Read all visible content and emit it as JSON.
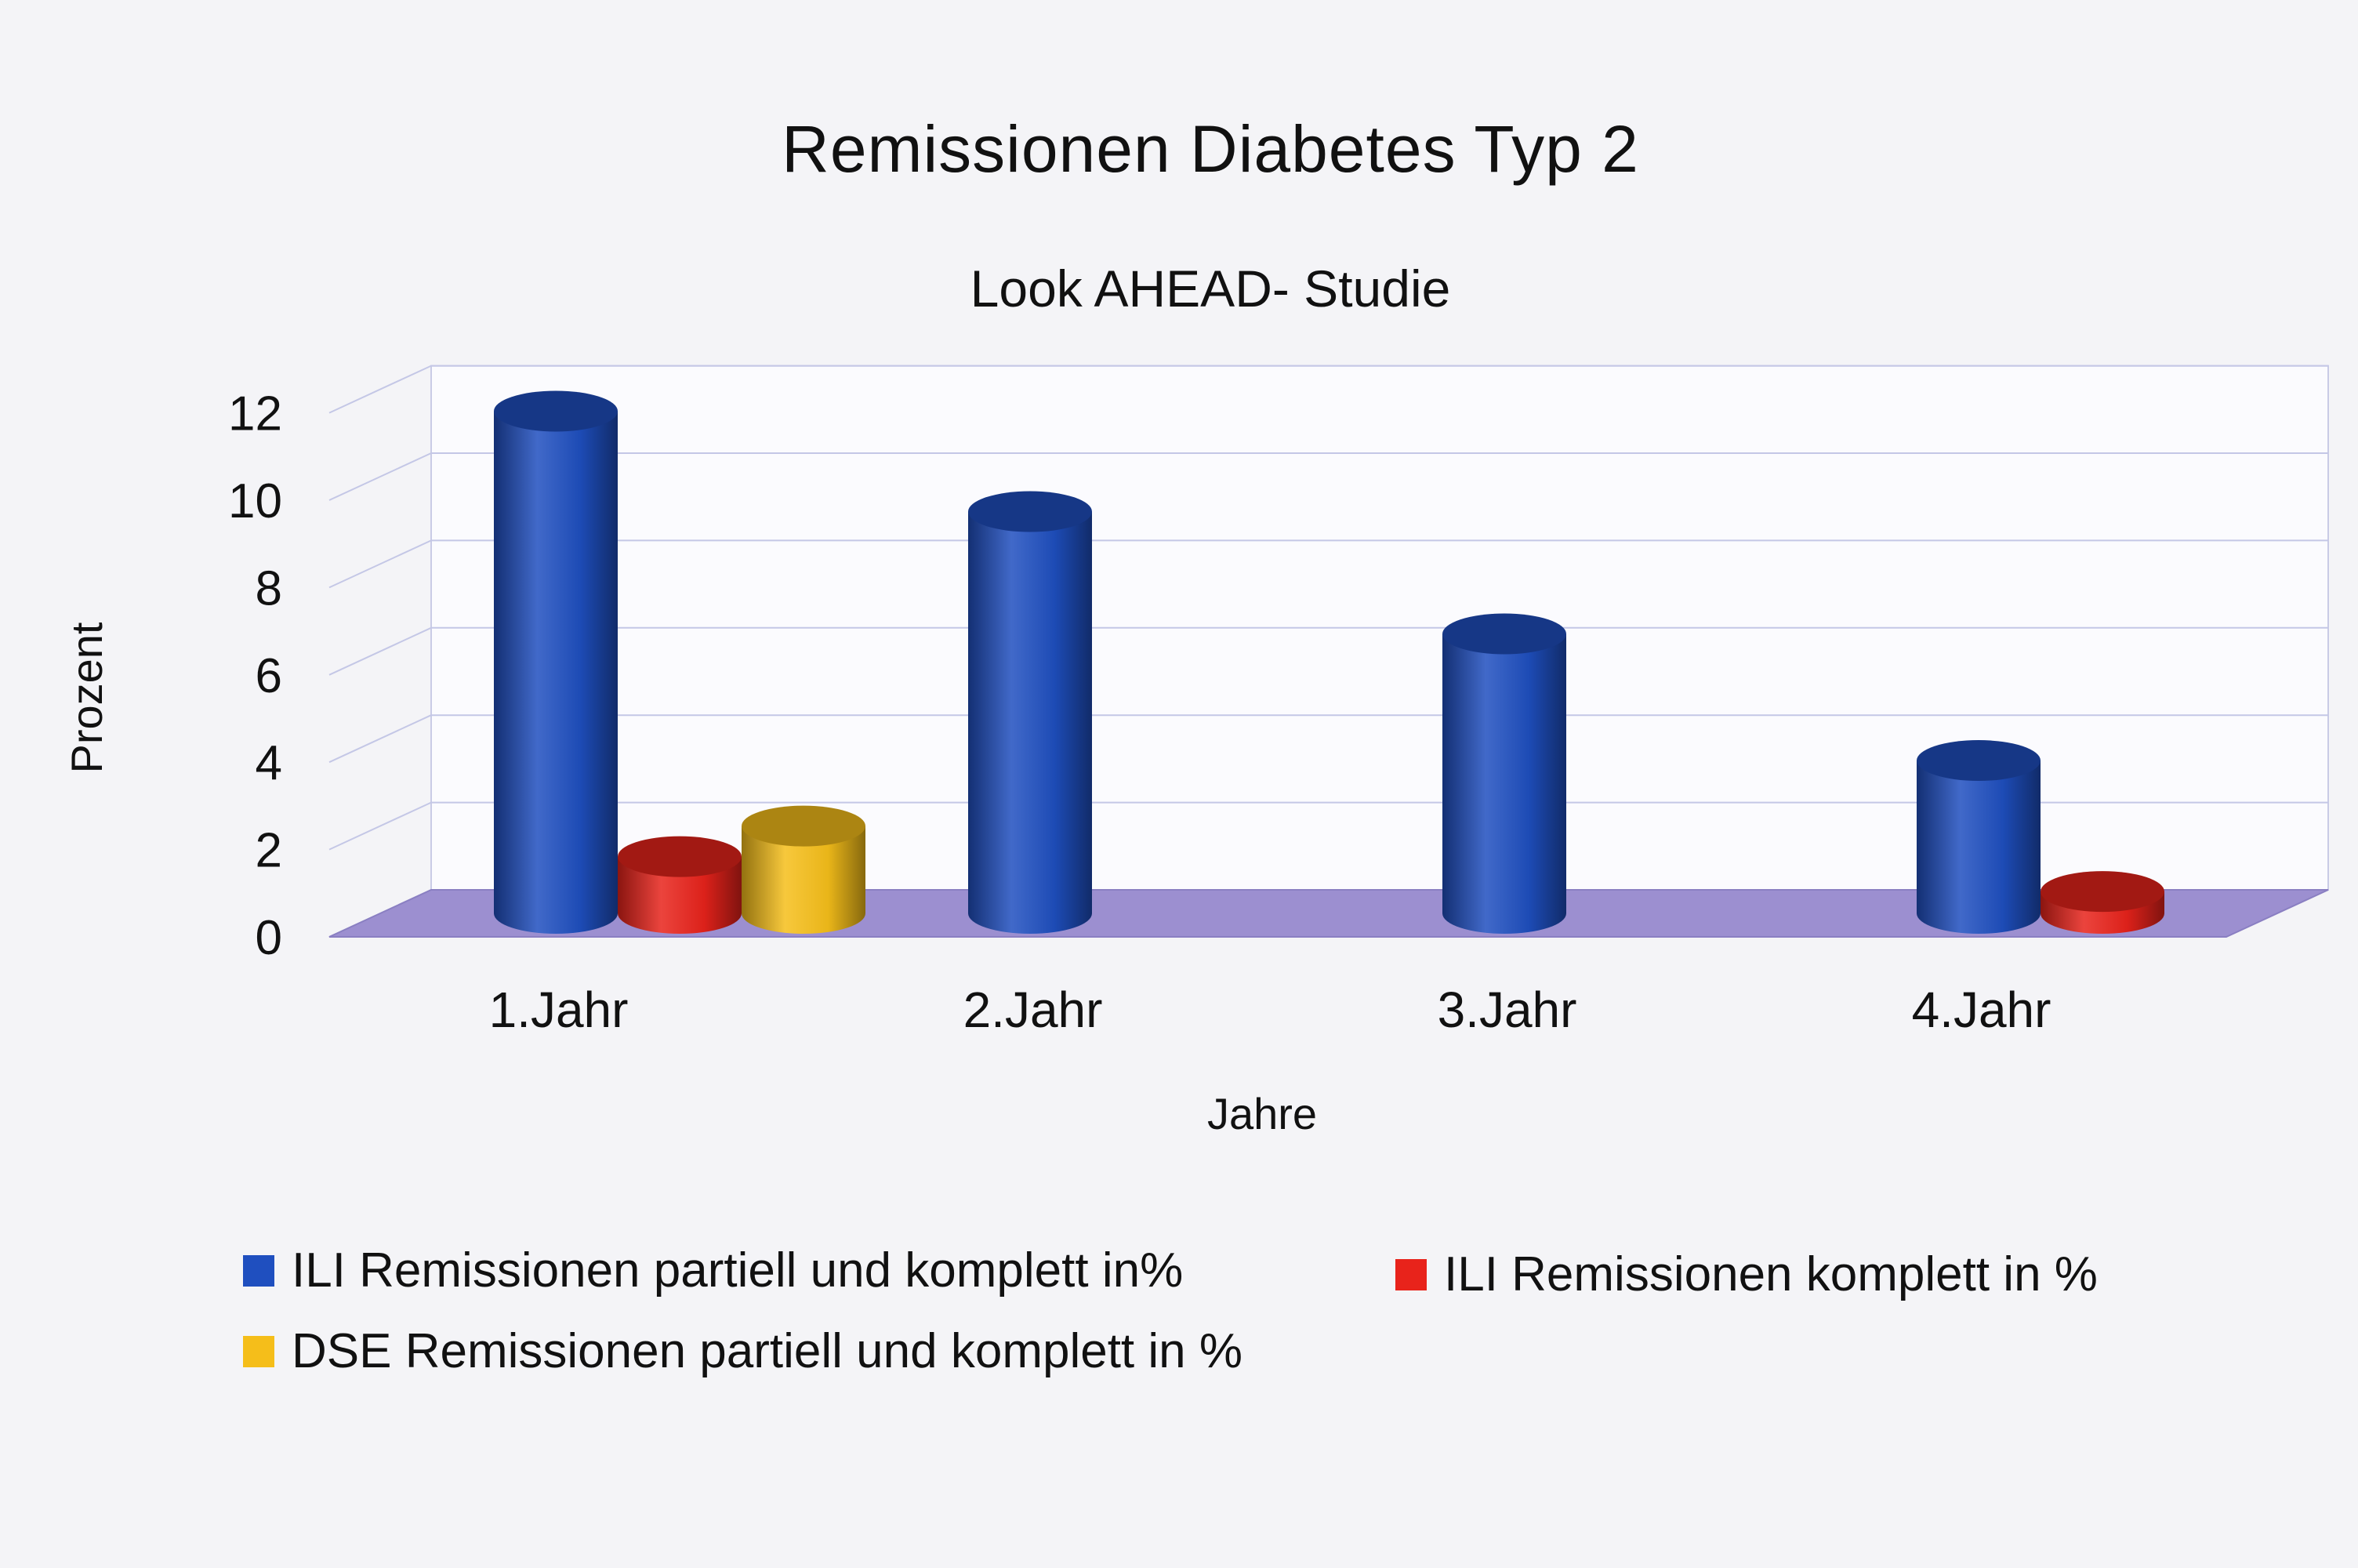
{
  "chart_data": {
    "type": "bar",
    "title": "Remissionen Diabetes Typ 2",
    "subtitle": "Look AHEAD- Studie",
    "xlabel": "Jahre",
    "ylabel": "Prozent",
    "categories": [
      "1.Jahr",
      "2.Jahr",
      "3.Jahr",
      "4.Jahr"
    ],
    "ylim": [
      0,
      12
    ],
    "yticks": [
      0,
      2,
      4,
      6,
      8,
      10,
      12
    ],
    "grid": true,
    "legend_position": "bottom",
    "series": [
      {
        "name": "ILI Remissionen partiell und komplett in%",
        "color": "#1f4fbf",
        "values": [
          11.5,
          9.2,
          6.4,
          3.5
        ]
      },
      {
        "name": "ILI Remissionen komplett in %",
        "color": "#e8231b",
        "values": [
          1.3,
          null,
          null,
          0.5
        ]
      },
      {
        "name": "DSE Remissionen partiell und komplett in %",
        "color": "#f5be1a",
        "values": [
          2.0,
          null,
          null,
          null
        ]
      }
    ]
  }
}
